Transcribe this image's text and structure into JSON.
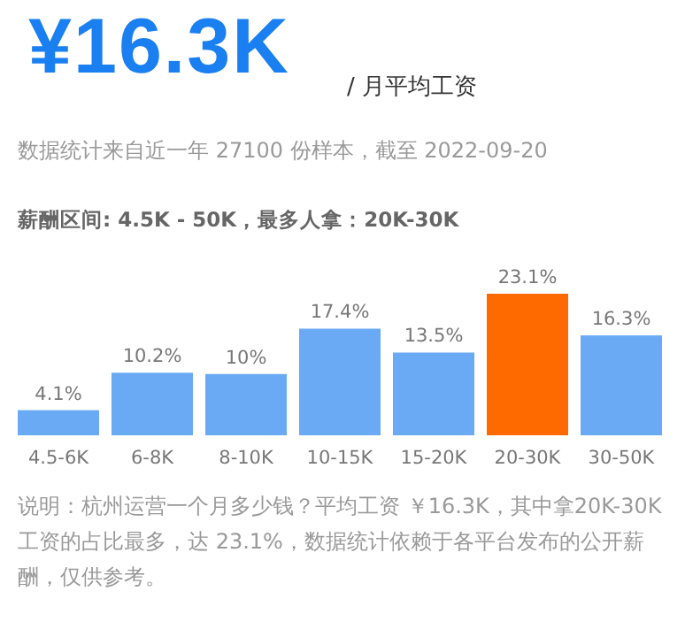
{
  "chart_data": {
    "type": "bar",
    "title": "¥16.3K",
    "subtitle": "/ 月平均工资",
    "annotations": [
      "数据统计来自近一年 27100 份样本，截至 2022-09-20",
      "薪酬区间: 4.5K - 50K，最多人拿：20K-30K",
      "说明：杭州运营一个月多少钱？平均工资 ￥16.3K，其中拿20K-30K 工资的占比最多，达 23.1%，数据统计依赖于各平台发布的公开薪酬，仅供参考。"
    ],
    "categories": [
      "4.5-6K",
      "6-8K",
      "8-10K",
      "10-15K",
      "15-20K",
      "20-30K",
      "30-50K"
    ],
    "values": [
      4.1,
      10.2,
      10,
      17.4,
      13.5,
      23.1,
      16.3
    ],
    "value_labels": [
      "4.1%",
      "10.2%",
      "10%",
      "17.4%",
      "13.5%",
      "23.1%",
      "16.3%"
    ],
    "colors": [
      "#6aaaf5",
      "#6aaaf5",
      "#6aaaf5",
      "#6aaaf5",
      "#6aaaf5",
      "#ff6a00",
      "#6aaaf5"
    ]
  }
}
